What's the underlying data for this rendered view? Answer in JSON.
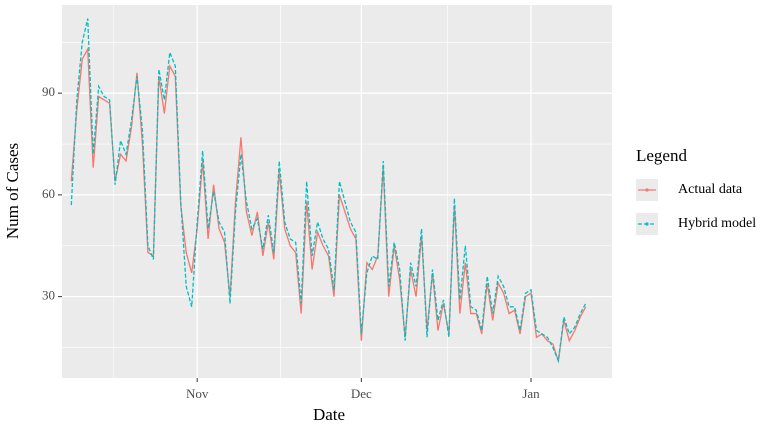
{
  "chart_data": {
    "type": "line",
    "x_label": "Date",
    "y_label": "Num of Cases",
    "legend_title": "Legend",
    "categories": [
      null,
      null,
      null,
      null,
      null,
      null,
      null,
      null,
      null,
      null,
      null,
      null,
      null,
      null,
      null,
      null,
      null,
      null,
      null,
      null,
      null,
      null,
      null,
      "Nov",
      null,
      null,
      null,
      null,
      null,
      null,
      null,
      null,
      null,
      null,
      null,
      null,
      null,
      null,
      null,
      null,
      null,
      null,
      null,
      null,
      null,
      null,
      null,
      null,
      null,
      null,
      null,
      null,
      null,
      "Dec",
      null,
      null,
      null,
      null,
      null,
      null,
      null,
      null,
      null,
      null,
      null,
      null,
      null,
      null,
      null,
      null,
      null,
      null,
      null,
      null,
      null,
      null,
      null,
      null,
      null,
      null,
      null,
      null,
      null,
      null,
      "Jan",
      null,
      null,
      null,
      null,
      null,
      null,
      null,
      null,
      null,
      null
    ],
    "series": [
      {
        "name": "Actual data",
        "color": "#f8766d",
        "dash": false,
        "values": [
          64,
          85,
          100,
          103,
          68,
          89,
          88,
          87,
          64,
          72,
          70,
          80,
          96,
          75,
          43,
          42,
          95,
          84,
          98,
          95,
          57,
          43,
          37,
          50,
          70,
          47,
          63,
          50,
          46,
          30,
          58,
          77,
          55,
          48,
          55,
          42,
          52,
          41,
          67,
          50,
          45,
          43,
          25,
          58,
          38,
          49,
          45,
          42,
          30,
          60,
          55,
          50,
          47,
          17,
          40,
          38,
          42,
          68,
          30,
          45,
          35,
          18,
          38,
          30,
          48,
          20,
          37,
          20,
          28,
          19,
          57,
          25,
          40,
          25,
          25,
          19,
          34,
          23,
          34,
          31,
          25,
          26,
          19,
          30,
          31,
          18,
          19,
          17,
          16,
          11,
          23,
          17,
          20,
          24,
          27
        ]
      },
      {
        "name": "Hybrid model",
        "color": "#00bfc4",
        "dash": true,
        "values": [
          57,
          88,
          105,
          112,
          72,
          92,
          89,
          88,
          63,
          76,
          72,
          82,
          95,
          79,
          45,
          41,
          97,
          88,
          102,
          98,
          58,
          33,
          27,
          52,
          73,
          50,
          61,
          52,
          49,
          28,
          55,
          72,
          58,
          50,
          53,
          44,
          54,
          43,
          70,
          52,
          47,
          46,
          28,
          64,
          42,
          52,
          47,
          44,
          32,
          64,
          58,
          52,
          49,
          19,
          37,
          42,
          41,
          70,
          33,
          46,
          38,
          17,
          40,
          33,
          50,
          18,
          38,
          23,
          29,
          18,
          59,
          29,
          45,
          27,
          26,
          20,
          36,
          25,
          36,
          33,
          27,
          27,
          20,
          31,
          32,
          20,
          19,
          18,
          15,
          11,
          24,
          19,
          21,
          25,
          28
        ]
      }
    ],
    "ylim": [
      6,
      116
    ],
    "yticks": [
      30,
      60,
      90
    ],
    "grid": true,
    "legend": "right"
  }
}
